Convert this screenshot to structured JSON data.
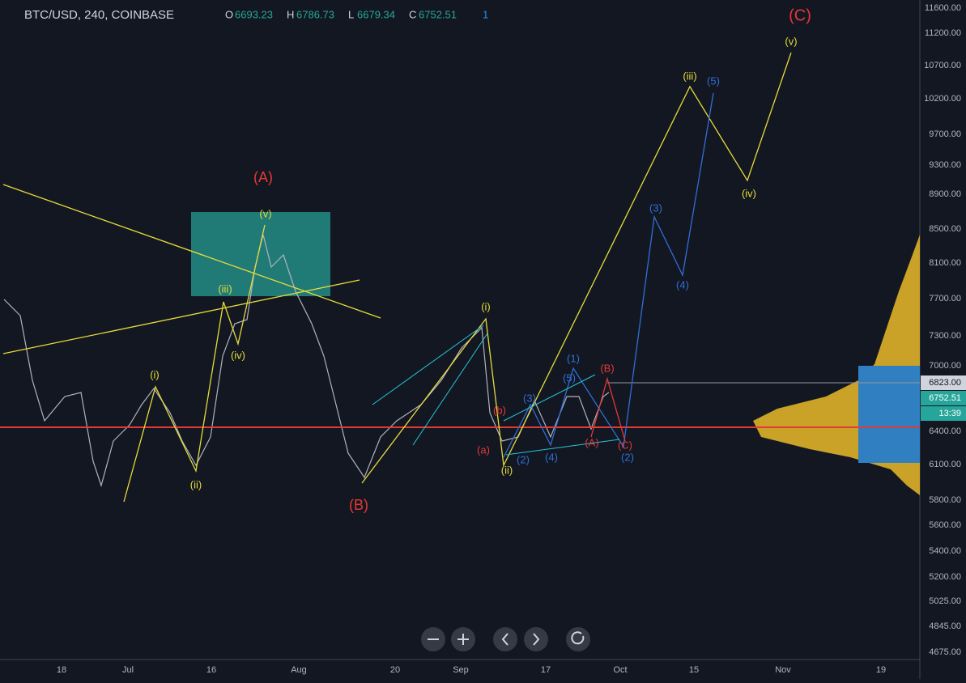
{
  "header": {
    "symbol": "BTC/USD, 240, COINBASE",
    "open_label": "O",
    "open": 6693.23,
    "high_label": "H",
    "high": 6786.73,
    "low_label": "L",
    "low": 6679.34,
    "close_label": "C",
    "close": 6752.51,
    "alerts": 1
  },
  "price_axis": [
    "11600.00",
    "11200.00",
    "10700.00",
    "10200.00",
    "9700.00",
    "9300.00",
    "8900.00",
    "8500.00",
    "8100.00",
    "7700.00",
    "7300.00",
    "7000.00",
    "6400.00",
    "6100.00",
    "5800.00",
    "5600.00",
    "5400.00",
    "5200.00",
    "5025.00",
    "4845.00",
    "4675.00"
  ],
  "price_tags": [
    "6823.00",
    "6752.51",
    "13:39"
  ],
  "time_axis": [
    "18",
    "Jul",
    "16",
    "Aug",
    "20",
    "Sep",
    "17",
    "Oct",
    "15",
    "Nov",
    "19"
  ],
  "wave_labels": [
    "(C)",
    "(v)",
    "(iii)",
    "(5)",
    "(iv)",
    "(3)",
    "(4)",
    "(A)",
    "(v)",
    "(iii)",
    "(iv)",
    "(i)",
    "(ii)",
    "(B)",
    "(i)",
    "(a)",
    "(b)",
    "(ii)",
    "(1)",
    "(5)",
    "(3)",
    "(2)",
    "(4)",
    "(B)",
    "(A)",
    "(C)",
    "(2)"
  ]
}
